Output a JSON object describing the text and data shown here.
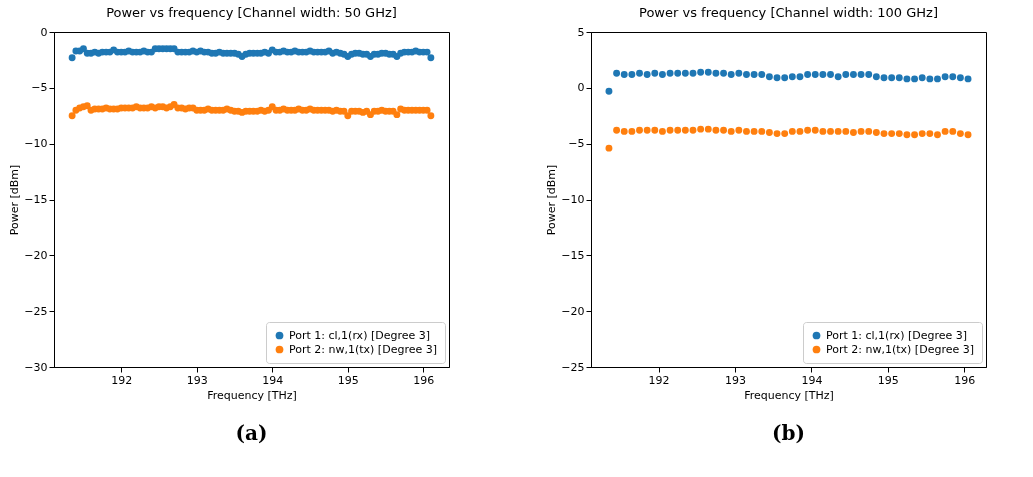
{
  "chart_data": [
    {
      "type": "scatter",
      "title": "Power vs frequency [Channel width: 50 GHz]",
      "xlabel": "Frequency [THz]",
      "ylabel": "Power [dBm]",
      "x": [
        191.35,
        191.4,
        191.45,
        191.5,
        191.55,
        191.6,
        191.65,
        191.7,
        191.75,
        191.8,
        191.85,
        191.9,
        191.95,
        192.0,
        192.05,
        192.1,
        192.15,
        192.2,
        192.25,
        192.3,
        192.35,
        192.4,
        192.45,
        192.5,
        192.55,
        192.6,
        192.65,
        192.7,
        192.75,
        192.8,
        192.85,
        192.9,
        192.95,
        193.0,
        193.05,
        193.1,
        193.15,
        193.2,
        193.25,
        193.3,
        193.35,
        193.4,
        193.45,
        193.5,
        193.55,
        193.6,
        193.65,
        193.7,
        193.75,
        193.8,
        193.85,
        193.9,
        193.95,
        194.0,
        194.05,
        194.1,
        194.15,
        194.2,
        194.25,
        194.3,
        194.35,
        194.4,
        194.45,
        194.5,
        194.55,
        194.6,
        194.65,
        194.7,
        194.75,
        194.8,
        194.85,
        194.9,
        194.95,
        195.0,
        195.05,
        195.1,
        195.15,
        195.2,
        195.25,
        195.3,
        195.35,
        195.4,
        195.45,
        195.5,
        195.55,
        195.6,
        195.65,
        195.7,
        195.75,
        195.8,
        195.85,
        195.9,
        195.95,
        196.0,
        196.05,
        196.1
      ],
      "series": [
        {
          "name": "Port 1: cl,1(rx) [Degree 3]",
          "color": "#1f77b4",
          "values": [
            -2.3,
            -1.7,
            -1.7,
            -1.5,
            -1.9,
            -1.9,
            -1.8,
            -1.9,
            -1.8,
            -1.8,
            -1.8,
            -1.6,
            -1.8,
            -1.8,
            -1.8,
            -1.7,
            -1.8,
            -1.8,
            -1.8,
            -1.7,
            -1.8,
            -1.8,
            -1.5,
            -1.5,
            -1.5,
            -1.5,
            -1.5,
            -1.5,
            -1.8,
            -1.8,
            -1.8,
            -1.8,
            -1.7,
            -1.8,
            -1.7,
            -1.8,
            -1.8,
            -1.9,
            -1.9,
            -1.8,
            -1.9,
            -1.9,
            -1.9,
            -1.9,
            -2.0,
            -2.2,
            -2.0,
            -1.9,
            -1.9,
            -1.9,
            -1.9,
            -1.8,
            -1.9,
            -1.6,
            -1.8,
            -1.8,
            -1.7,
            -1.8,
            -1.8,
            -1.7,
            -1.8,
            -1.8,
            -1.8,
            -1.7,
            -1.8,
            -1.8,
            -1.8,
            -1.8,
            -1.7,
            -1.9,
            -1.8,
            -1.9,
            -2.0,
            -2.2,
            -2.0,
            -1.9,
            -1.9,
            -2.0,
            -2.0,
            -2.2,
            -2.0,
            -2.0,
            -1.9,
            -1.9,
            -2.0,
            -2.0,
            -2.2,
            -1.9,
            -1.8,
            -1.8,
            -1.8,
            -1.7,
            -1.8,
            -1.8,
            -1.8,
            -2.3
          ]
        },
        {
          "name": "Port 2: nw,1(tx) [Degree 3]",
          "color": "#ff7f0e",
          "values": [
            -7.5,
            -7.0,
            -6.8,
            -6.7,
            -6.6,
            -7.0,
            -6.9,
            -6.9,
            -6.9,
            -6.8,
            -6.9,
            -6.9,
            -6.9,
            -6.8,
            -6.8,
            -6.8,
            -6.8,
            -6.7,
            -6.8,
            -6.8,
            -6.8,
            -6.7,
            -6.8,
            -6.7,
            -6.7,
            -6.8,
            -6.7,
            -6.5,
            -6.8,
            -6.8,
            -6.9,
            -6.8,
            -6.8,
            -7.0,
            -7.0,
            -7.0,
            -6.9,
            -7.0,
            -7.0,
            -7.0,
            -7.0,
            -6.9,
            -7.0,
            -7.1,
            -7.1,
            -7.2,
            -7.1,
            -7.1,
            -7.1,
            -7.1,
            -7.0,
            -7.1,
            -7.0,
            -6.7,
            -7.0,
            -7.0,
            -6.9,
            -7.0,
            -7.0,
            -7.0,
            -6.9,
            -7.0,
            -7.0,
            -6.9,
            -7.0,
            -7.0,
            -7.0,
            -7.0,
            -7.0,
            -7.1,
            -7.0,
            -7.1,
            -7.1,
            -7.5,
            -7.1,
            -7.1,
            -7.1,
            -7.2,
            -7.1,
            -7.4,
            -7.1,
            -7.1,
            -7.0,
            -7.1,
            -7.1,
            -7.1,
            -7.4,
            -6.9,
            -7.0,
            -7.0,
            -7.0,
            -7.0,
            -7.0,
            -7.0,
            -7.0,
            -7.5
          ]
        }
      ],
      "xlim": [
        191.11,
        196.34
      ],
      "xticks": [
        192,
        193,
        194,
        195,
        196
      ],
      "ylim": [
        -30,
        0
      ],
      "yticks": [
        -30,
        -25,
        -20,
        -15,
        -10,
        -5,
        0
      ],
      "grid": false,
      "legend": "bottom right",
      "marker": "circle",
      "annotations": [
        "(a)"
      ]
    },
    {
      "type": "scatter",
      "title": "Power vs frequency [Channel width: 100 GHz]",
      "xlabel": "Frequency [THz]",
      "ylabel": "Power [dBm]",
      "x": [
        191.35,
        191.45,
        191.55,
        191.65,
        191.75,
        191.85,
        191.95,
        192.05,
        192.15,
        192.25,
        192.35,
        192.45,
        192.55,
        192.65,
        192.75,
        192.85,
        192.95,
        193.05,
        193.15,
        193.25,
        193.35,
        193.45,
        193.55,
        193.65,
        193.75,
        193.85,
        193.95,
        194.05,
        194.15,
        194.25,
        194.35,
        194.45,
        194.55,
        194.65,
        194.75,
        194.85,
        194.95,
        195.05,
        195.15,
        195.25,
        195.35,
        195.45,
        195.55,
        195.65,
        195.75,
        195.85,
        195.95,
        196.05
      ],
      "series": [
        {
          "name": "Port 1: cl,1(rx) [Degree 3]",
          "color": "#1f77b4",
          "values": [
            -0.3,
            1.3,
            1.2,
            1.2,
            1.3,
            1.2,
            1.3,
            1.2,
            1.3,
            1.3,
            1.3,
            1.3,
            1.4,
            1.4,
            1.3,
            1.3,
            1.2,
            1.3,
            1.2,
            1.2,
            1.2,
            1.0,
            0.9,
            0.9,
            1.0,
            1.0,
            1.2,
            1.2,
            1.2,
            1.2,
            1.0,
            1.2,
            1.2,
            1.2,
            1.2,
            1.0,
            0.9,
            0.9,
            0.9,
            0.8,
            0.8,
            0.9,
            0.8,
            0.8,
            1.0,
            1.0,
            0.9,
            0.8
          ]
        },
        {
          "name": "Port 2: nw,1(tx) [Degree 3]",
          "color": "#ff7f0e",
          "values": [
            -5.4,
            -3.8,
            -3.9,
            -3.9,
            -3.8,
            -3.8,
            -3.8,
            -3.9,
            -3.8,
            -3.8,
            -3.8,
            -3.8,
            -3.7,
            -3.7,
            -3.8,
            -3.8,
            -3.9,
            -3.8,
            -3.9,
            -3.9,
            -3.9,
            -4.0,
            -4.1,
            -4.1,
            -3.9,
            -3.9,
            -3.8,
            -3.8,
            -3.9,
            -3.9,
            -3.9,
            -3.9,
            -4.0,
            -3.9,
            -3.9,
            -4.0,
            -4.1,
            -4.1,
            -4.1,
            -4.2,
            -4.2,
            -4.1,
            -4.1,
            -4.2,
            -3.9,
            -3.9,
            -4.1,
            -4.2
          ]
        }
      ],
      "xlim": [
        191.115,
        196.285
      ],
      "xticks": [
        192,
        193,
        194,
        195,
        196
      ],
      "ylim": [
        -25,
        5
      ],
      "yticks": [
        -25,
        -20,
        -15,
        -10,
        -5,
        0,
        5
      ],
      "grid": false,
      "legend": "bottom right",
      "marker": "circle",
      "annotations": [
        "(b)"
      ]
    }
  ]
}
